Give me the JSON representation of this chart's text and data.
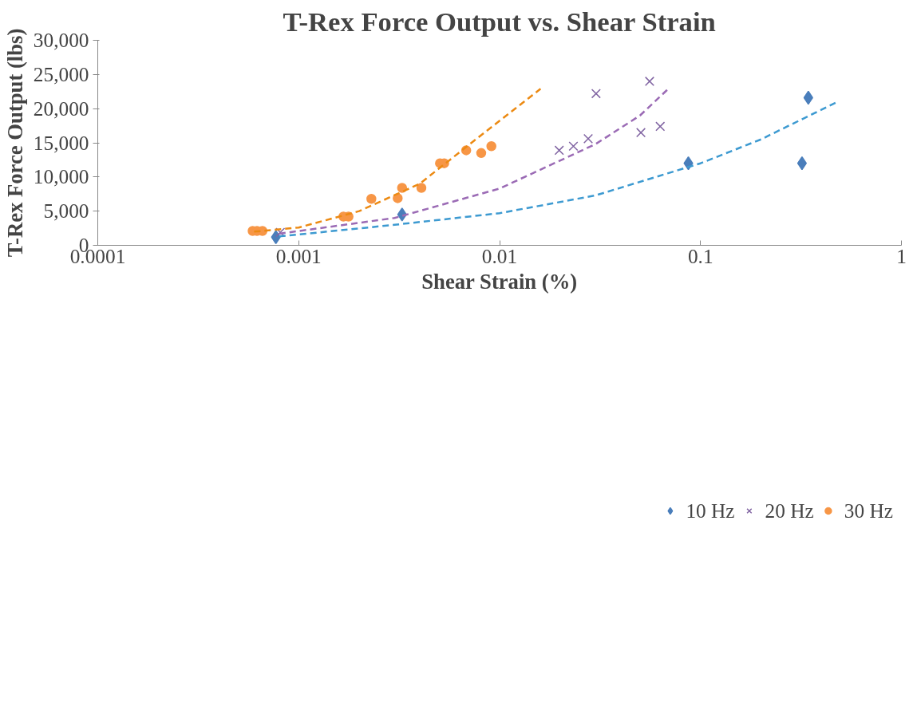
{
  "chart_data": {
    "type": "scatter",
    "title": "T-Rex Force Output vs. Shear Strain",
    "xlabel": "Shear Strain (%)",
    "ylabel": "T-Rex Force Output (lbs)",
    "log": "x",
    "xlim": [
      0.0001,
      1
    ],
    "xticks": [
      0.0001,
      0.001,
      0.01,
      0.1,
      1
    ],
    "ylim": [
      0,
      30000
    ],
    "yticks": [
      {
        "value": 0,
        "label": "0"
      },
      {
        "value": 5000,
        "label": "5,000"
      },
      {
        "value": 10000,
        "label": "10,000"
      },
      {
        "value": 15000,
        "label": "15,000"
      },
      {
        "value": 20000,
        "label": "20,000"
      },
      {
        "value": 25000,
        "label": "25,000"
      },
      {
        "value": 30000,
        "label": "30,000"
      }
    ],
    "grid": false,
    "legend": "bottom",
    "series": [
      {
        "name": "10 Hz",
        "color": "#4a7ebb",
        "marker": "diamond",
        "x": [
          0.00077,
          0.00327,
          0.087,
          0.32,
          0.344
        ],
        "values": [
          1200,
          4500,
          12000,
          12000,
          21600
        ]
      },
      {
        "name": "20 Hz",
        "color": "#8064a2",
        "marker": "cross",
        "x": [
          0.00081,
          0.0198,
          0.0233,
          0.0276,
          0.0302,
          0.0505,
          0.0558,
          0.063
        ],
        "values": [
          1900,
          13900,
          14500,
          15600,
          22200,
          16500,
          24000,
          17400
        ]
      },
      {
        "name": "30 Hz",
        "color": "#f79646",
        "marker": "circle",
        "x": [
          0.00059,
          0.00062,
          0.00066,
          0.00167,
          0.00177,
          0.0023,
          0.00311,
          0.00327,
          0.00408,
          0.00505,
          0.0053,
          0.00682,
          0.0081,
          0.0091
        ],
        "values": [
          2100,
          2100,
          2100,
          4200,
          4200,
          6800,
          6900,
          8400,
          8400,
          12000,
          12000,
          13900,
          13500,
          14500
        ]
      },
      {
        "type": "line",
        "line_style": "dashed",
        "color": "#3d9ad1",
        "x": [
          0.0008,
          0.003,
          0.01,
          0.03,
          0.1,
          0.2,
          0.48
        ],
        "values": [
          1300,
          3000,
          4700,
          7300,
          12000,
          15500,
          21000
        ]
      },
      {
        "type": "line",
        "line_style": "dashed",
        "color": "#9b6bb5",
        "x": [
          0.0008,
          0.003,
          0.01,
          0.03,
          0.05,
          0.0697
        ],
        "values": [
          1700,
          4000,
          8300,
          14800,
          19000,
          23000
        ]
      },
      {
        "type": "line",
        "line_style": "dashed",
        "color": "#ec8a13",
        "x": [
          0.0006,
          0.001,
          0.002,
          0.004,
          0.008,
          0.016
        ],
        "values": [
          2000,
          2600,
          5000,
          9000,
          16000,
          22900
        ]
      }
    ]
  }
}
